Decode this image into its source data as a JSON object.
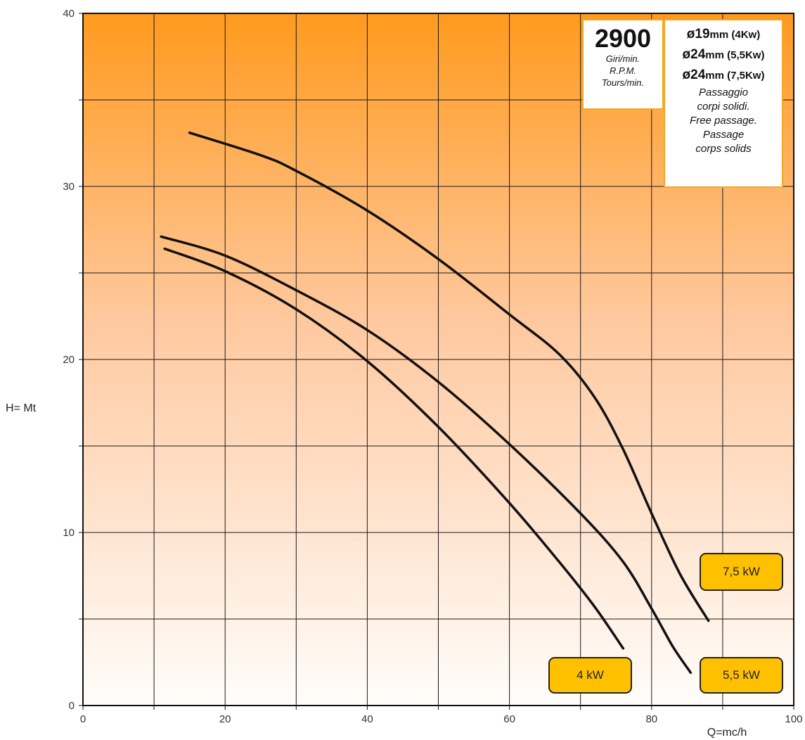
{
  "chart_data": {
    "type": "line",
    "title": "",
    "xlabel": "Q=mc/h",
    "ylabel": "H= Mt",
    "xlim": [
      0,
      100
    ],
    "ylim": [
      0,
      40
    ],
    "x_ticks": [
      0,
      20,
      40,
      60,
      80,
      100
    ],
    "y_ticks": [
      0,
      10,
      20,
      30,
      40
    ],
    "grid": true,
    "background_gradient": [
      "#ff9a1e",
      "#fffdfb"
    ],
    "series": [
      {
        "name": "4 kW",
        "x": [
          11.5,
          20,
          30,
          40,
          50,
          60,
          67,
          72,
          76
        ],
        "y": [
          26.4,
          25.1,
          22.9,
          19.9,
          16.1,
          11.7,
          8.3,
          5.7,
          3.3
        ]
      },
      {
        "name": "5,5 kW",
        "x": [
          11,
          20,
          30,
          40,
          50,
          60,
          70,
          76,
          80,
          83,
          85.5
        ],
        "y": [
          27.1,
          26.0,
          24.0,
          21.7,
          18.7,
          15.1,
          11.1,
          8.3,
          5.6,
          3.4,
          1.9
        ]
      },
      {
        "name": "7,5 kW",
        "x": [
          15,
          25,
          30,
          40,
          50,
          60,
          67,
          72,
          76,
          80,
          84,
          88
        ],
        "y": [
          33.1,
          31.8,
          30.9,
          28.6,
          25.8,
          22.6,
          20.3,
          17.8,
          14.8,
          11.1,
          7.6,
          4.9
        ]
      }
    ],
    "labels": [
      "4 kW",
      "5,5 kW",
      "7,5 kW"
    ],
    "line_color": "#111111",
    "label_color": "#ffc000"
  },
  "info": {
    "rpm_value": "2900",
    "rpm_line1": "Giri/min.",
    "rpm_line2": "R.P.M.",
    "rpm_line3": "Tours/min.",
    "free_rows": [
      {
        "big": "ø19",
        "small": "mm (4Kw)"
      },
      {
        "big": "ø24",
        "small": "mm (5,5Kw)"
      },
      {
        "big": "ø24",
        "small": "mm (7,5Kw)"
      }
    ],
    "free_lines": [
      "Passaggio",
      "corpi solidi.",
      "Free passage.",
      "Passage",
      "corps solids"
    ]
  }
}
